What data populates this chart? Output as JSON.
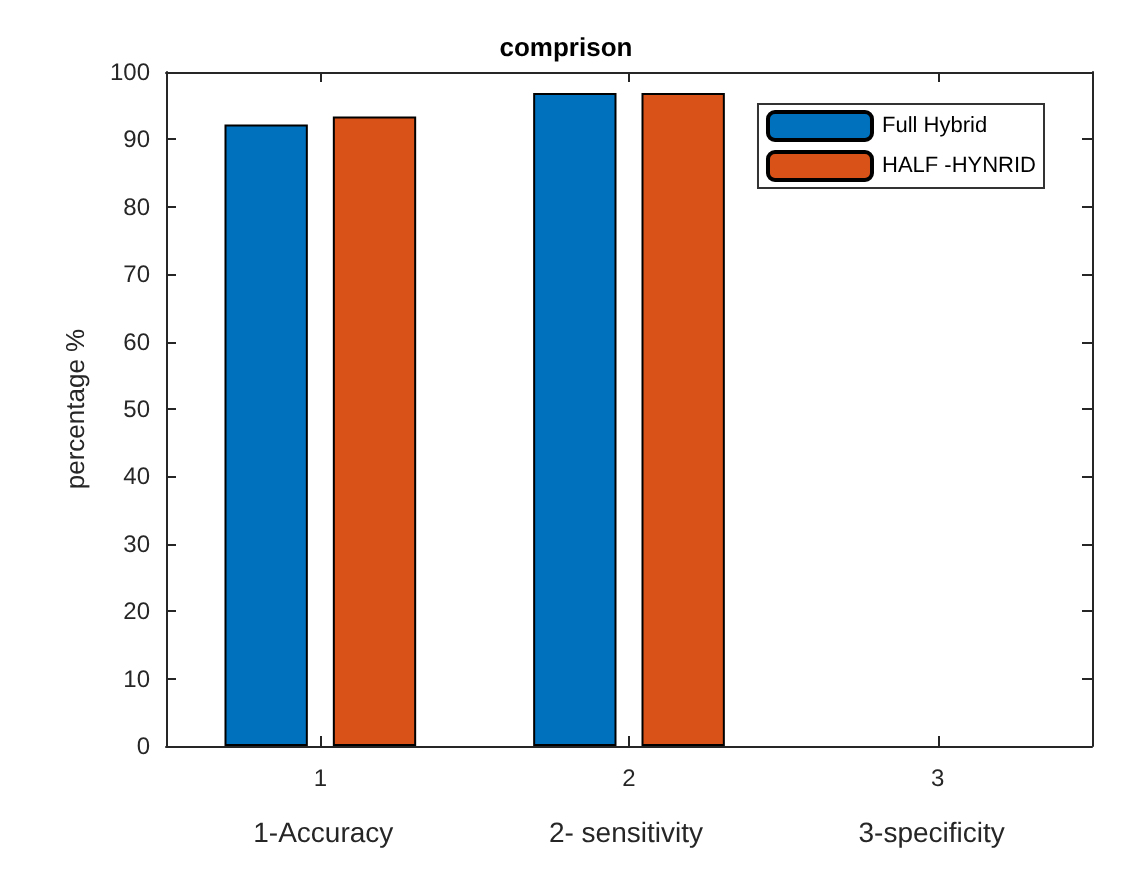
{
  "chart_data": {
    "type": "bar",
    "title": "comprison",
    "ylabel": "percentage %",
    "xlabel": "1-Accuracy                    2- sensitivity                    3-specificity",
    "categories": [
      "1",
      "2",
      "3"
    ],
    "series": [
      {
        "name": "Full Hybrid",
        "color": "#0072bd",
        "values": [
          92.2,
          96.9,
          null
        ]
      },
      {
        "name": "HALF -HYNRID",
        "color": "#d95319",
        "values": [
          93.4,
          96.9,
          null
        ]
      }
    ],
    "ylim": [
      0,
      100
    ],
    "yticks": [
      0,
      10,
      20,
      30,
      40,
      50,
      60,
      70,
      80,
      90,
      100
    ],
    "legend": "top right",
    "grid": false
  }
}
